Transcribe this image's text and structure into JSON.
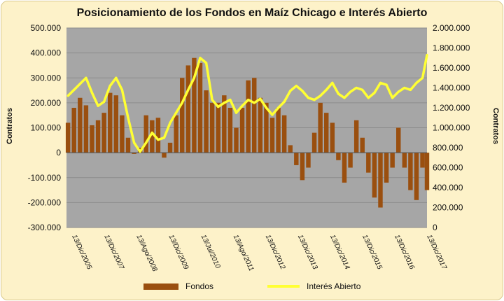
{
  "chart_data": {
    "type": "bar+line",
    "title": "Posicionamiento de los Fondos en Maíz Chicago e Interés Abierto",
    "ylabel_left": "Contratos",
    "ylabel_right": "Contratos",
    "left_axis": {
      "ylim": [
        -300000,
        500000
      ],
      "ticks": [
        "-300.000",
        "-200.000",
        "-100.000",
        "0",
        "100.000",
        "200.000",
        "300.000",
        "400.000",
        "500.000"
      ]
    },
    "right_axis": {
      "ylim": [
        0,
        2000000
      ],
      "ticks": [
        "0",
        "200.000",
        "400.000",
        "600.000",
        "800.000",
        "1.000.000",
        "1.200.000",
        "1.400.000",
        "1.600.000",
        "1.800.000",
        "2.000.000"
      ]
    },
    "x_tick_labels": [
      "13/Dic/2005",
      "13/Dic/2007",
      "13/Ago/2008",
      "13/Dic/2009",
      "13/Jul/2010",
      "13/Ago/2011",
      "13/Dic/2012",
      "13/Dic/2013",
      "13/Dic/2014",
      "13/Dic/2015",
      "13/Dic/2016",
      "13/Dic/2017"
    ],
    "x_range": [
      2005.95,
      2017.95
    ],
    "grid": true,
    "legend": "bottom",
    "series": [
      {
        "name": "Fondos",
        "kind": "bar",
        "color": "#9a4f0f",
        "x": [
          2006.0,
          2006.2,
          2006.4,
          2006.6,
          2006.8,
          2007.0,
          2007.2,
          2007.4,
          2007.6,
          2007.8,
          2008.0,
          2008.2,
          2008.4,
          2008.6,
          2008.8,
          2009.0,
          2009.2,
          2009.4,
          2009.6,
          2009.8,
          2010.0,
          2010.2,
          2010.4,
          2010.6,
          2010.8,
          2011.0,
          2011.2,
          2011.4,
          2011.6,
          2011.8,
          2012.0,
          2012.2,
          2012.4,
          2012.6,
          2012.8,
          2013.0,
          2013.2,
          2013.4,
          2013.6,
          2013.8,
          2014.0,
          2014.2,
          2014.4,
          2014.6,
          2014.8,
          2015.0,
          2015.2,
          2015.4,
          2015.6,
          2015.8,
          2016.0,
          2016.2,
          2016.4,
          2016.6,
          2016.8,
          2017.0,
          2017.2,
          2017.4,
          2017.6,
          2017.8,
          2017.95
        ],
        "values": [
          120000,
          180000,
          220000,
          190000,
          110000,
          130000,
          160000,
          240000,
          230000,
          150000,
          60000,
          -5000,
          20000,
          150000,
          130000,
          140000,
          -20000,
          40000,
          150000,
          300000,
          350000,
          380000,
          360000,
          250000,
          200000,
          200000,
          230000,
          180000,
          100000,
          180000,
          290000,
          300000,
          220000,
          200000,
          140000,
          180000,
          150000,
          30000,
          -50000,
          -110000,
          -60000,
          80000,
          200000,
          160000,
          120000,
          -30000,
          -120000,
          -60000,
          130000,
          60000,
          -80000,
          -180000,
          -220000,
          -120000,
          -60000,
          100000,
          -60000,
          -150000,
          -190000,
          -60000,
          -150000
        ]
      },
      {
        "name": "Interés Abierto",
        "kind": "line",
        "color": "#ffff33",
        "x": [
          2006.0,
          2006.2,
          2006.4,
          2006.6,
          2006.8,
          2007.0,
          2007.2,
          2007.4,
          2007.6,
          2007.8,
          2008.0,
          2008.2,
          2008.4,
          2008.6,
          2008.8,
          2009.0,
          2009.2,
          2009.4,
          2009.6,
          2009.8,
          2010.0,
          2010.2,
          2010.4,
          2010.6,
          2010.8,
          2011.0,
          2011.2,
          2011.4,
          2011.6,
          2011.8,
          2012.0,
          2012.2,
          2012.4,
          2012.6,
          2012.8,
          2013.0,
          2013.2,
          2013.4,
          2013.6,
          2013.8,
          2014.0,
          2014.2,
          2014.4,
          2014.6,
          2014.8,
          2015.0,
          2015.2,
          2015.4,
          2015.6,
          2015.8,
          2016.0,
          2016.2,
          2016.4,
          2016.6,
          2016.8,
          2017.0,
          2017.2,
          2017.4,
          2017.6,
          2017.8,
          2017.95
        ],
        "values": [
          1320000,
          1380000,
          1440000,
          1500000,
          1350000,
          1220000,
          1260000,
          1420000,
          1500000,
          1380000,
          1100000,
          850000,
          760000,
          850000,
          950000,
          880000,
          900000,
          1050000,
          1150000,
          1250000,
          1380000,
          1500000,
          1700000,
          1650000,
          1280000,
          1210000,
          1250000,
          1280000,
          1150000,
          1220000,
          1280000,
          1250000,
          1290000,
          1200000,
          1130000,
          1200000,
          1260000,
          1370000,
          1420000,
          1370000,
          1300000,
          1280000,
          1320000,
          1380000,
          1450000,
          1340000,
          1300000,
          1360000,
          1400000,
          1380000,
          1300000,
          1350000,
          1450000,
          1430000,
          1300000,
          1360000,
          1400000,
          1380000,
          1450000,
          1500000,
          1730000
        ]
      }
    ]
  }
}
